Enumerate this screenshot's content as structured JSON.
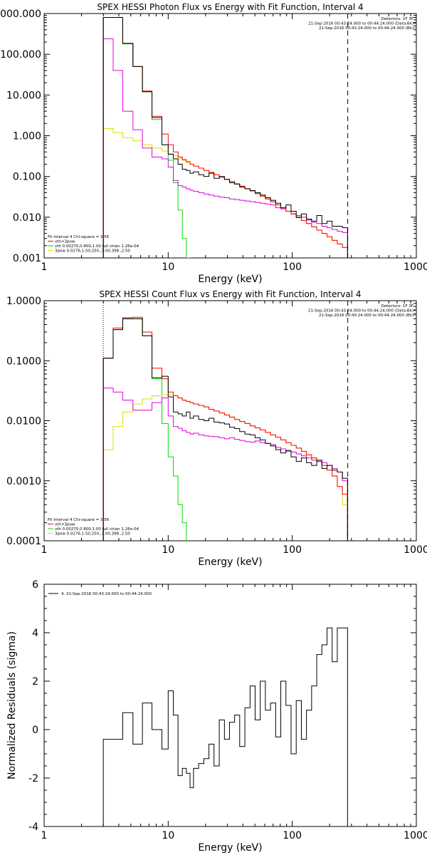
{
  "chart_data": [
    {
      "type": "line",
      "title": "SPEX HESSI Photon Flux vs Energy with Fit Function, Interval 4",
      "xlabel": "Energy (keV)",
      "ylabel": "",
      "x_scale": "log",
      "y_scale": "log",
      "xlim": [
        1,
        1000
      ],
      "ylim": [
        0.001,
        1000
      ],
      "x_tick_labels": [
        "1",
        "10",
        "100",
        "1000"
      ],
      "y_tick_labels": [
        "1000.000",
        "100.000",
        "10.000",
        "1.000",
        "0.100",
        "0.010",
        "0.001"
      ],
      "header_lines": [
        "Detectors: 1F 3F",
        "21-Sep-2016 00:43:24.000 to 00:44:24.000 (Data-Bk)",
        "21-Sep-2016 00:43:24.000 to 00:44:24.000 (Bk)"
      ],
      "legend_lines": [
        "Fit Interval 4   Chi-square = 3.56",
        "vth+3pow",
        "vth 0.00270,0.800,1.00  full chian 1.26e-04",
        "3pow 0.0276,1.50,250.,3.00,398.,2.50"
      ],
      "colors": {
        "data": "#000000",
        "total": "#ff0000",
        "thermal": "#00dd00",
        "powerlaw": "#dddd00",
        "background": "#dd00dd"
      },
      "vlines": [
        3,
        280
      ],
      "edges": [
        3,
        3.6,
        4.3,
        5.2,
        6.2,
        7.4,
        8.9,
        10,
        11,
        12,
        13,
        14,
        15,
        16,
        17.6,
        19.4,
        21.3,
        23.4,
        25.8,
        28.4,
        31.2,
        34.3,
        37.7,
        41.5,
        45.7,
        50.2,
        55.2,
        60.7,
        66.8,
        73.5,
        80.8,
        88.9,
        97.8,
        107.6,
        118.4,
        130.2,
        143.2,
        157.5,
        173.3,
        190.6,
        209.7,
        230.6,
        253.7,
        279
      ],
      "series": [
        {
          "key": "thermal",
          "values": [
            800,
            800,
            180,
            50,
            12,
            2.5,
            0.6,
            0.25,
            0.07,
            0.015,
            0.003,
            0.001,
            null,
            null,
            null,
            null,
            null,
            null,
            null,
            null,
            null,
            null,
            null,
            null,
            null,
            null,
            null,
            null,
            null,
            null,
            null,
            null,
            null,
            null,
            null,
            null,
            null,
            null,
            null,
            null,
            null,
            null,
            null
          ]
        },
        {
          "key": "powerlaw",
          "values": [
            1.5,
            1.2,
            0.9,
            0.75,
            0.6,
            0.5,
            0.42,
            0.36,
            0.32,
            0.28,
            0.25,
            0.22,
            0.2,
            0.18,
            0.16,
            0.14,
            0.125,
            0.11,
            0.095,
            0.085,
            0.075,
            0.066,
            0.058,
            0.05,
            0.044,
            0.038,
            0.033,
            0.028,
            0.024,
            0.02,
            0.017,
            0.014,
            0.012,
            0.0098,
            0.0083,
            0.007,
            0.0058,
            0.0048,
            0.004,
            0.0033,
            0.0027,
            0.0022,
            0.0018
          ]
        },
        {
          "key": "background",
          "values": [
            240,
            40,
            4,
            1.4,
            0.5,
            0.3,
            0.27,
            0.17,
            0.08,
            0.06,
            0.055,
            0.05,
            0.046,
            0.043,
            0.04,
            0.037,
            0.035,
            0.033,
            0.031,
            0.03,
            0.028,
            0.027,
            0.026,
            0.025,
            0.024,
            0.023,
            0.022,
            0.021,
            0.02,
            0.017,
            0.016,
            0.014,
            0.012,
            0.011,
            0.01,
            0.0085,
            0.0075,
            0.007,
            0.006,
            0.0055,
            0.005,
            0.0045,
            0.0042
          ]
        },
        {
          "key": "total",
          "values": [
            800,
            800,
            185,
            50,
            12.5,
            3,
            1.1,
            0.6,
            0.4,
            0.3,
            0.26,
            0.23,
            0.2,
            0.18,
            0.16,
            0.14,
            0.125,
            0.11,
            0.095,
            0.085,
            0.075,
            0.066,
            0.058,
            0.05,
            0.044,
            0.038,
            0.033,
            0.028,
            0.024,
            0.02,
            0.017,
            0.014,
            0.012,
            0.0098,
            0.0083,
            0.007,
            0.0058,
            0.0048,
            0.004,
            0.0033,
            0.0027,
            0.0022,
            0.0018
          ]
        },
        {
          "key": "data",
          "values": [
            800,
            800,
            185,
            50,
            12,
            2.8,
            0.6,
            0.35,
            0.27,
            0.2,
            0.15,
            0.14,
            0.12,
            0.13,
            0.11,
            0.1,
            0.12,
            0.09,
            0.1,
            0.085,
            0.07,
            0.065,
            0.055,
            0.05,
            0.045,
            0.04,
            0.035,
            0.03,
            0.026,
            0.022,
            0.017,
            0.02,
            0.014,
            0.01,
            0.012,
            0.009,
            0.008,
            0.011,
            0.007,
            0.008,
            0.006,
            0.006,
            0.0055
          ]
        }
      ]
    },
    {
      "type": "line",
      "title": "SPEX HESSI Count Flux vs Energy with Fit Function, Interval 4",
      "xlabel": "Energy (keV)",
      "ylabel": "",
      "x_scale": "log",
      "y_scale": "log",
      "xlim": [
        1,
        1000
      ],
      "ylim": [
        0.0001,
        1
      ],
      "x_tick_labels": [
        "1",
        "10",
        "100",
        "1000"
      ],
      "y_tick_labels": [
        "1.0000",
        "0.1000",
        "0.0100",
        "0.0010",
        "0.0001"
      ],
      "header_lines": [
        "Detectors: 1F 3F",
        "21-Sep-2016 00:43:24.000 to 00:44:24.000 (Data-Bk)",
        "21-Sep-2016 00:43:24.000 to 00:44:24.000 (Bk)"
      ],
      "legend_lines": [
        "Fit Interval 4   Chi-square = 3.56",
        "vth+3pow",
        "vth 0.00270,0.800,1.00  full chian 1.26e-04",
        "3pow 0.0276,1.50,250.,3.00,398.,2.50"
      ],
      "colors": {
        "data": "#000000",
        "total": "#ff0000",
        "thermal": "#00dd00",
        "powerlaw": "#dddd00",
        "background": "#dd00dd"
      },
      "vlines": [
        3,
        280
      ],
      "edges": [
        3,
        3.6,
        4.3,
        5.2,
        6.2,
        7.4,
        8.9,
        10,
        11,
        12,
        13,
        14,
        15,
        16,
        17.6,
        19.4,
        21.3,
        23.4,
        25.8,
        28.4,
        31.2,
        34.3,
        37.7,
        41.5,
        45.7,
        50.2,
        55.2,
        60.7,
        66.8,
        73.5,
        80.8,
        88.9,
        97.8,
        107.6,
        118.4,
        130.2,
        143.2,
        157.5,
        173.3,
        190.6,
        209.7,
        230.6,
        253.7,
        279
      ],
      "series": [
        {
          "key": "thermal",
          "values": [
            0.11,
            0.33,
            0.5,
            0.5,
            0.26,
            0.05,
            0.009,
            0.0025,
            0.0012,
            0.0004,
            0.0002,
            null,
            null,
            null,
            null,
            null,
            null,
            null,
            null,
            null,
            null,
            null,
            null,
            null,
            null,
            null,
            null,
            null,
            null,
            null,
            null,
            null,
            null,
            null,
            null,
            null,
            null,
            null,
            null,
            null,
            null,
            null,
            null
          ]
        },
        {
          "key": "powerlaw",
          "values": [
            0.0033,
            0.008,
            0.014,
            0.019,
            0.023,
            0.026,
            0.027,
            0.027,
            0.026,
            0.024,
            0.022,
            0.021,
            0.02,
            0.019,
            0.018,
            0.017,
            0.0155,
            0.0145,
            0.0135,
            0.0125,
            0.0115,
            0.0105,
            0.0097,
            0.009,
            0.0082,
            0.0076,
            0.007,
            0.0064,
            0.0058,
            0.0053,
            0.0048,
            0.0043,
            0.0039,
            0.0035,
            0.0031,
            0.0027,
            0.0024,
            0.0021,
            0.0018,
            0.0015,
            0.0012,
            0.0008,
            0.0004
          ]
        },
        {
          "key": "background",
          "values": [
            0.035,
            0.03,
            0.022,
            0.015,
            0.015,
            0.02,
            0.024,
            0.012,
            0.008,
            0.0075,
            0.0068,
            0.0064,
            0.006,
            0.0062,
            0.0058,
            0.0056,
            0.0055,
            0.0054,
            0.0052,
            0.005,
            0.0052,
            0.0049,
            0.0047,
            0.0045,
            0.0044,
            0.0046,
            0.0043,
            0.0042,
            0.004,
            0.0036,
            0.0034,
            0.0031,
            0.003,
            0.0028,
            0.0026,
            0.0024,
            0.0022,
            0.0021,
            0.002,
            0.0018,
            0.0016,
            0.0014,
            0.001
          ]
        },
        {
          "key": "total",
          "values": [
            0.11,
            0.35,
            0.52,
            0.53,
            0.3,
            0.075,
            0.05,
            0.03,
            0.026,
            0.024,
            0.022,
            0.021,
            0.02,
            0.019,
            0.018,
            0.017,
            0.0155,
            0.0145,
            0.0135,
            0.0125,
            0.0115,
            0.0105,
            0.0097,
            0.009,
            0.0082,
            0.0076,
            0.007,
            0.0064,
            0.0058,
            0.0053,
            0.0048,
            0.0043,
            0.0039,
            0.0035,
            0.0031,
            0.0027,
            0.0024,
            0.0021,
            0.0018,
            0.0015,
            0.0012,
            0.0008,
            0.0006
          ]
        },
        {
          "key": "data",
          "values": [
            0.11,
            0.33,
            0.5,
            0.5,
            0.26,
            0.052,
            0.055,
            0.025,
            0.014,
            0.013,
            0.012,
            0.014,
            0.011,
            0.012,
            0.0105,
            0.01,
            0.011,
            0.0095,
            0.0092,
            0.0088,
            0.0078,
            0.0074,
            0.0066,
            0.006,
            0.0058,
            0.0052,
            0.0048,
            0.0042,
            0.0038,
            0.0033,
            0.0029,
            0.0032,
            0.0025,
            0.0021,
            0.0024,
            0.002,
            0.0018,
            0.0022,
            0.0016,
            0.0018,
            0.0015,
            0.0014,
            0.0011
          ]
        }
      ]
    },
    {
      "type": "line",
      "title": "",
      "xlabel": "Energy (keV)",
      "ylabel": "Normalized Residuals (sigma)",
      "x_scale": "log",
      "y_scale": "linear",
      "xlim": [
        1,
        1000
      ],
      "ylim": [
        -4,
        6
      ],
      "x_tick_labels": [
        "1",
        "10",
        "100",
        "1000"
      ],
      "y_tick_labels": [
        "6",
        "4",
        "2",
        "0",
        "-2",
        "-4"
      ],
      "header_lines": [],
      "legend_lines": [
        "4. 21-Sep-2016 00:43:24.000 to 00:44:24.000"
      ],
      "colors": {
        "data": "#000000"
      },
      "vlines": [],
      "edges": [
        3,
        3.6,
        4.3,
        5.2,
        6.2,
        7.4,
        8.9,
        10,
        11,
        12,
        13,
        14,
        15,
        16,
        17.6,
        19.4,
        21.3,
        23.4,
        25.8,
        28.4,
        31.2,
        34.3,
        37.7,
        41.5,
        45.7,
        50.2,
        55.2,
        60.7,
        66.8,
        73.5,
        80.8,
        88.9,
        97.8,
        107.6,
        118.4,
        130.2,
        143.2,
        157.5,
        173.3,
        190.6,
        209.7,
        230.6,
        253.7,
        279
      ],
      "series": [
        {
          "key": "data",
          "values": [
            -0.4,
            -0.4,
            0.7,
            -0.6,
            1.1,
            0,
            -0.8,
            1.6,
            0.6,
            -1.9,
            -1.6,
            -1.8,
            -2.4,
            -1.6,
            -1.4,
            -1.2,
            -0.6,
            -1.5,
            0.4,
            -0.4,
            0.3,
            0.6,
            -0.7,
            0.9,
            1.8,
            0.4,
            2.0,
            0.8,
            1.1,
            -0.3,
            2.0,
            1.0,
            -1.0,
            1.2,
            -0.4,
            0.8,
            1.8,
            3.1,
            3.5,
            4.2,
            2.8,
            4.2,
            4.2
          ]
        }
      ]
    }
  ]
}
